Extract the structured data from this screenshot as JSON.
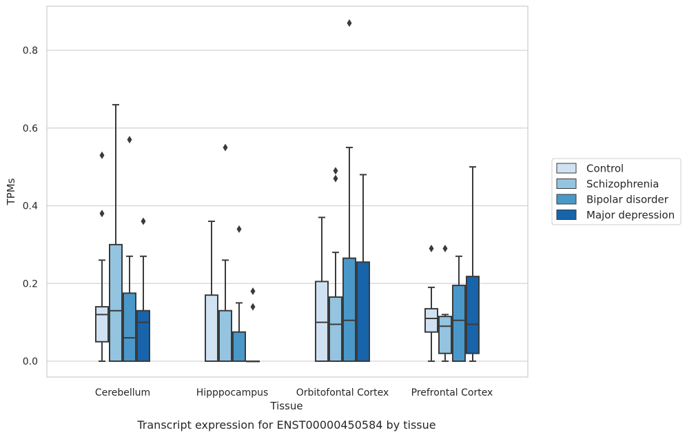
{
  "chart_data": {
    "type": "box",
    "xlabel": "Tissue",
    "ylabel": "TPMs",
    "caption": "Transcript expression for ENST00000450584 by tissue",
    "ylim": [
      -0.04,
      0.92
    ],
    "yticks": [
      0.0,
      0.2,
      0.4,
      0.6,
      0.8
    ],
    "ytick_labels": [
      "0.0",
      "0.2",
      "0.4",
      "0.6",
      "0.8"
    ],
    "grid": "horizontal",
    "legend_position": "right",
    "categories": [
      "Cerebellum",
      "Hipppocampus",
      "Orbitofontal Cortex",
      "Prefrontal Cortex"
    ],
    "series": [
      {
        "name": "Control",
        "color": "#d0e1f2",
        "boxes": [
          {
            "q1": 0.05,
            "median": 0.12,
            "q3": 0.14,
            "whisker_low": 0.0,
            "whisker_high": 0.26,
            "outliers": [
              0.38,
              0.53
            ]
          },
          {
            "q1": 0.0,
            "median": 0.0,
            "q3": 0.17,
            "whisker_low": 0.0,
            "whisker_high": 0.36,
            "outliers": []
          },
          {
            "q1": 0.0,
            "median": 0.1,
            "q3": 0.205,
            "whisker_low": 0.0,
            "whisker_high": 0.37,
            "outliers": []
          },
          {
            "q1": 0.075,
            "median": 0.11,
            "q3": 0.135,
            "whisker_low": 0.0,
            "whisker_high": 0.19,
            "outliers": [
              0.29
            ]
          }
        ]
      },
      {
        "name": "Schizophrenia",
        "color": "#94c4df",
        "boxes": [
          {
            "q1": 0.0,
            "median": 0.13,
            "q3": 0.3,
            "whisker_low": 0.0,
            "whisker_high": 0.66,
            "outliers": []
          },
          {
            "q1": 0.0,
            "median": 0.0,
            "q3": 0.13,
            "whisker_low": 0.0,
            "whisker_high": 0.26,
            "outliers": [
              0.55
            ]
          },
          {
            "q1": 0.0,
            "median": 0.095,
            "q3": 0.165,
            "whisker_low": 0.0,
            "whisker_high": 0.28,
            "outliers": [
              0.47,
              0.49
            ]
          },
          {
            "q1": 0.02,
            "median": 0.09,
            "q3": 0.115,
            "whisker_low": 0.0,
            "whisker_high": 0.12,
            "outliers": [
              0.29
            ]
          }
        ]
      },
      {
        "name": "Bipolar disorder",
        "color": "#4a98c9",
        "boxes": [
          {
            "q1": 0.0,
            "median": 0.06,
            "q3": 0.175,
            "whisker_low": 0.0,
            "whisker_high": 0.27,
            "outliers": [
              0.57
            ]
          },
          {
            "q1": 0.0,
            "median": 0.0,
            "q3": 0.075,
            "whisker_low": 0.0,
            "whisker_high": 0.15,
            "outliers": [
              0.34
            ]
          },
          {
            "q1": 0.0,
            "median": 0.105,
            "q3": 0.265,
            "whisker_low": 0.0,
            "whisker_high": 0.55,
            "outliers": [
              0.87
            ]
          },
          {
            "q1": 0.0,
            "median": 0.105,
            "q3": 0.195,
            "whisker_low": 0.0,
            "whisker_high": 0.27,
            "outliers": []
          }
        ]
      },
      {
        "name": "Major depression",
        "color": "#1764ab",
        "boxes": [
          {
            "q1": 0.0,
            "median": 0.1,
            "q3": 0.13,
            "whisker_low": 0.0,
            "whisker_high": 0.27,
            "outliers": [
              0.36
            ]
          },
          {
            "q1": 0.0,
            "median": 0.0,
            "q3": 0.0,
            "whisker_low": 0.0,
            "whisker_high": 0.0,
            "outliers": [
              0.14,
              0.18
            ]
          },
          {
            "q1": 0.0,
            "median": 0.0,
            "q3": 0.255,
            "whisker_low": 0.0,
            "whisker_high": 0.48,
            "outliers": []
          },
          {
            "q1": 0.02,
            "median": 0.095,
            "q3": 0.218,
            "whisker_low": 0.0,
            "whisker_high": 0.5,
            "outliers": []
          }
        ]
      }
    ]
  }
}
